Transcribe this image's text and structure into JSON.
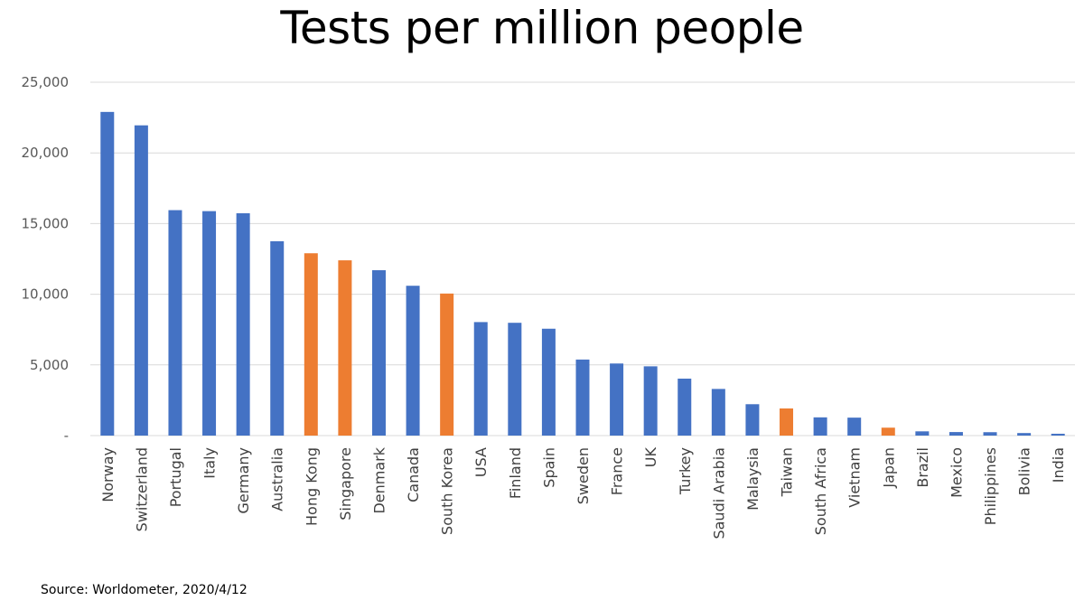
{
  "chart_data": {
    "type": "bar",
    "title": "Tests per million people",
    "xlabel": "",
    "ylabel": "",
    "ylim": [
      0,
      25000
    ],
    "yticks": [
      0,
      5000,
      10000,
      15000,
      20000,
      25000
    ],
    "ytick_labels": [
      "-",
      "5,000",
      "10,000",
      "15,000",
      "20,000",
      "25,000"
    ],
    "grid": true,
    "legend": "none",
    "categories": [
      "Norway",
      "Switzerland",
      "Portugal",
      "Italy",
      "Germany",
      "Australia",
      "Hong Kong",
      "Singapore",
      "Denmark",
      "Canada",
      "South Korea",
      "USA",
      "Finland",
      "Spain",
      "Sweden",
      "France",
      "UK",
      "Turkey",
      "Saudi Arabia",
      "Malaysia",
      "Taiwan",
      "South Africa",
      "Vietnam",
      "Japan",
      "Brazil",
      "Mexico",
      "Philippines",
      "Bolivia",
      "India"
    ],
    "values": [
      22900,
      21950,
      15950,
      15880,
      15730,
      13750,
      12900,
      12400,
      11700,
      10600,
      10050,
      8030,
      7980,
      7560,
      5380,
      5100,
      4900,
      4030,
      3300,
      2220,
      1920,
      1290,
      1270,
      560,
      300,
      250,
      240,
      180,
      130
    ],
    "highlight": [
      false,
      false,
      false,
      false,
      false,
      false,
      true,
      true,
      false,
      false,
      true,
      false,
      false,
      false,
      false,
      false,
      false,
      false,
      false,
      false,
      true,
      false,
      false,
      true,
      false,
      false,
      false,
      false,
      false
    ],
    "colors": {
      "default": "#4472C4",
      "highlight": "#ED7D31",
      "grid": "#D9D9D9"
    }
  },
  "source": "Source: Worldometer, 2020/4/12"
}
